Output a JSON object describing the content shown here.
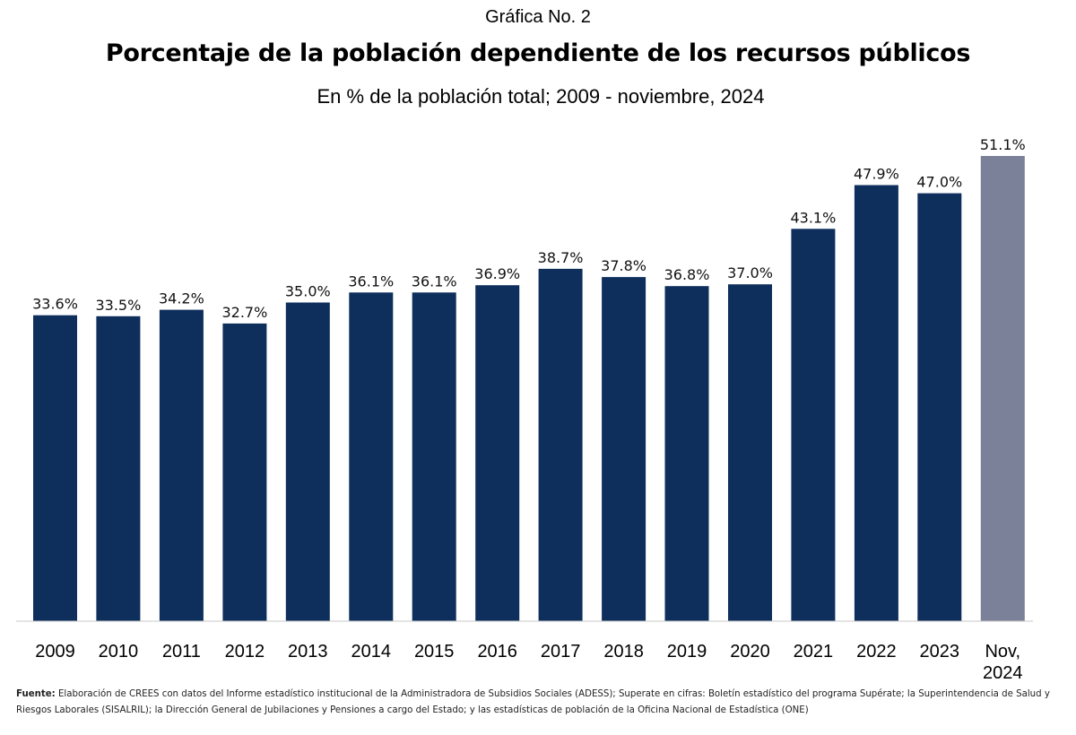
{
  "header": {
    "kicker": "Gráfica No. 2",
    "title": "Porcentaje de la población dependiente de los recursos públicos",
    "subtitle": "En % de la población total; 2009 - noviembre, 2024"
  },
  "chart_data": {
    "type": "bar",
    "categories": [
      "2009",
      "2010",
      "2011",
      "2012",
      "2013",
      "2014",
      "2015",
      "2016",
      "2017",
      "2018",
      "2019",
      "2020",
      "2021",
      "2022",
      "2023",
      "Nov, 2024"
    ],
    "values": [
      33.6,
      33.5,
      34.2,
      32.7,
      35.0,
      36.1,
      36.1,
      36.9,
      38.7,
      37.8,
      36.8,
      37.0,
      43.1,
      47.9,
      47.0,
      51.1
    ],
    "value_labels": [
      "33.6%",
      "33.5%",
      "34.2%",
      "32.7%",
      "35.0%",
      "36.1%",
      "36.1%",
      "36.9%",
      "38.7%",
      "37.8%",
      "36.8%",
      "37.0%",
      "43.1%",
      "47.9%",
      "47.0%",
      "51.1%"
    ],
    "ylim": [
      0,
      51.1
    ],
    "grid": false,
    "colors": {
      "default": "#0e2f5c",
      "highlight": "#7a8199",
      "axis": "#c8c8c8"
    },
    "highlight_index": 15
  },
  "footer": {
    "source_label": "Fuente:",
    "source_text": "Elaboración de CREES con datos del Informe estadístico institucional de la Administradora de Subsidios Sociales (ADESS); Superate en cifras: Boletín estadístico del programa Supérate; la Superintendencia de Salud y Riesgos Laborales (SISALRIL); la Dirección General de Jubilaciones y Pensiones a cargo del Estado; y las estadísticas de población de la Oficina Nacional de Estadística (ONE)"
  }
}
